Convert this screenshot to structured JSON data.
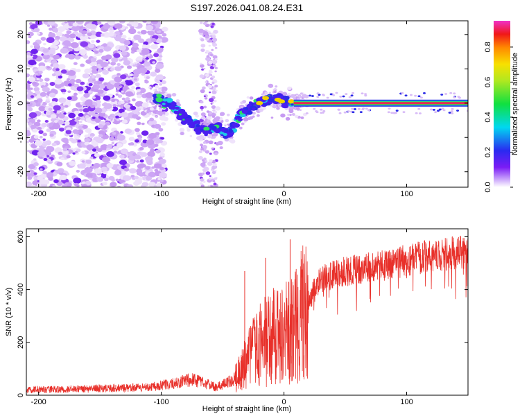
{
  "title": "S197.2026.041.08.24.E31",
  "chart_data": [
    {
      "type": "heatmap",
      "xlabel": "Height of straight line (km)",
      "ylabel": "Frequency (Hz)",
      "xlim": [
        -210,
        150
      ],
      "ylim": [
        -24.5,
        24
      ],
      "xticks": [
        -200,
        -100,
        0,
        100
      ],
      "yticks": [
        -20,
        -10,
        0,
        10,
        20
      ],
      "colorbar": {
        "label": "Normalized spectral amplitude",
        "range": [
          0,
          0.95
        ],
        "ticks": [
          0.0,
          0.2,
          0.4,
          0.6,
          0.8
        ]
      },
      "features": {
        "noise_region_x": [
          -210,
          -105
        ],
        "scattered_band_x": [
          -68,
          -55
        ],
        "signal_track": [
          {
            "x": -105,
            "y": 1
          },
          {
            "x": -95,
            "y": 0
          },
          {
            "x": -85,
            "y": -3
          },
          {
            "x": -75,
            "y": -6
          },
          {
            "x": -65,
            "y": -8
          },
          {
            "x": -55,
            "y": -7
          },
          {
            "x": -45,
            "y": -9
          },
          {
            "x": -35,
            "y": -3
          },
          {
            "x": -25,
            "y": -1
          },
          {
            "x": -15,
            "y": 1
          },
          {
            "x": -5,
            "y": 1
          },
          {
            "x": 5,
            "y": 0
          },
          {
            "x": 150,
            "y": 0
          }
        ],
        "tone_frequency": 0,
        "tone_start_x": 8
      }
    },
    {
      "type": "line",
      "xlabel": "Height of straight line (km)",
      "ylabel": "SNR (10 * v/v)",
      "xlim": [
        -210,
        150
      ],
      "ylim": [
        0,
        630
      ],
      "xticks": [
        -200,
        -100,
        0,
        100
      ],
      "yticks": [
        0,
        200,
        400,
        600
      ],
      "color": "#e8302a",
      "envelope": [
        {
          "x": -210,
          "y": 20
        },
        {
          "x": -150,
          "y": 25
        },
        {
          "x": -110,
          "y": 30
        },
        {
          "x": -90,
          "y": 45
        },
        {
          "x": -75,
          "y": 60
        },
        {
          "x": -55,
          "y": 30
        },
        {
          "x": -40,
          "y": 60
        },
        {
          "x": -30,
          "y": 130
        },
        {
          "x": -20,
          "y": 190
        },
        {
          "x": -10,
          "y": 220
        },
        {
          "x": 0,
          "y": 230
        },
        {
          "x": 10,
          "y": 260
        },
        {
          "x": 20,
          "y": 360
        },
        {
          "x": 30,
          "y": 440
        },
        {
          "x": 50,
          "y": 470
        },
        {
          "x": 80,
          "y": 490
        },
        {
          "x": 100,
          "y": 510
        },
        {
          "x": 120,
          "y": 530
        },
        {
          "x": 150,
          "y": 545
        }
      ],
      "spikes": [
        {
          "x": -32,
          "y": 470
        },
        {
          "x": -15,
          "y": 520
        },
        {
          "x": 5,
          "y": 590
        },
        {
          "x": 6,
          "y": 120
        }
      ]
    }
  ]
}
